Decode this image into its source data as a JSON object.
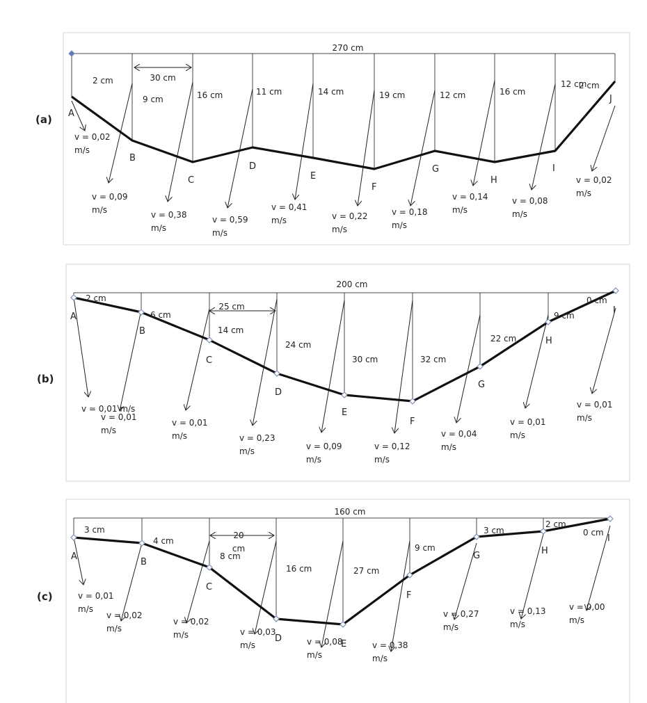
{
  "panels": [
    {
      "id": "a",
      "label": "(a)",
      "total_width_label": "270 cm",
      "spacing_label": "30 cm",
      "stations": [
        "A",
        "B",
        "C",
        "D",
        "E",
        "F",
        "G",
        "H",
        "I",
        "J"
      ],
      "depths": [
        "2 cm",
        "9 cm",
        "16 cm",
        "11 cm",
        "14 cm",
        "19 cm",
        "12 cm",
        "16 cm",
        "12 cm",
        "2 cm"
      ],
      "velocities": [
        [
          "v = 0,02",
          "m/s"
        ],
        [
          "v = 0,09",
          "m/s"
        ],
        [
          "v = 0,38",
          "m/s"
        ],
        [
          "v = 0,59",
          "m/s"
        ],
        [
          "v = 0,41",
          "m/s"
        ],
        [
          "v = 0,22",
          "m/s"
        ],
        [
          "v = 0,18",
          "m/s"
        ],
        [
          "v = 0,14",
          "m/s"
        ],
        [
          "v = 0,08",
          "m/s"
        ],
        [
          "v = 0,02",
          "m/s"
        ]
      ]
    },
    {
      "id": "b",
      "label": "(b)",
      "total_width_label": "200 cm",
      "spacing_label": "25 cm",
      "stations": [
        "A",
        "B",
        "C",
        "D",
        "E",
        "F",
        "G",
        "H",
        "I"
      ],
      "depths": [
        "2 cm",
        "6 cm",
        "14 cm",
        "24 cm",
        "30 cm",
        "32 cm",
        "22 cm",
        "9 cm",
        "0 cm"
      ],
      "velocities": [
        [
          "v = 0,01 m/s"
        ],
        [
          "v = 0,01",
          "m/s"
        ],
        [
          "v = 0,01",
          "m/s"
        ],
        [
          "v = 0,23",
          "m/s"
        ],
        [
          "v = 0,09",
          "m/s"
        ],
        [
          "v = 0,12",
          "m/s"
        ],
        [
          "v = 0,04",
          "m/s"
        ],
        [
          "v = 0,01",
          "m/s"
        ],
        [
          "v = 0,01",
          "m/s"
        ]
      ]
    },
    {
      "id": "c",
      "label": "(c)",
      "total_width_label": "160 cm",
      "spacing_label": "20 cm",
      "stations": [
        "A",
        "B",
        "C",
        "D",
        "E",
        "F",
        "G",
        "H",
        "I"
      ],
      "depths": [
        "3 cm",
        "4 cm",
        "8 cm",
        "16 cm",
        "27 cm",
        "9 cm",
        "3 cm",
        "2 cm",
        "0 cm"
      ],
      "velocities": [
        [
          "v = 0,01",
          "m/s"
        ],
        [
          "v = 0,02",
          "m/s"
        ],
        [
          "v = 0,02",
          "m/s"
        ],
        [
          "v = 0,03",
          "m/s"
        ],
        [
          "v = 0,08",
          "m/s"
        ],
        [
          "v = 0,38",
          "m/s"
        ],
        [
          "v = 0,27",
          "m/s"
        ],
        [
          "v = 0,13",
          "m/s"
        ],
        [
          "v = 0,00",
          "m/s"
        ]
      ]
    }
  ]
}
